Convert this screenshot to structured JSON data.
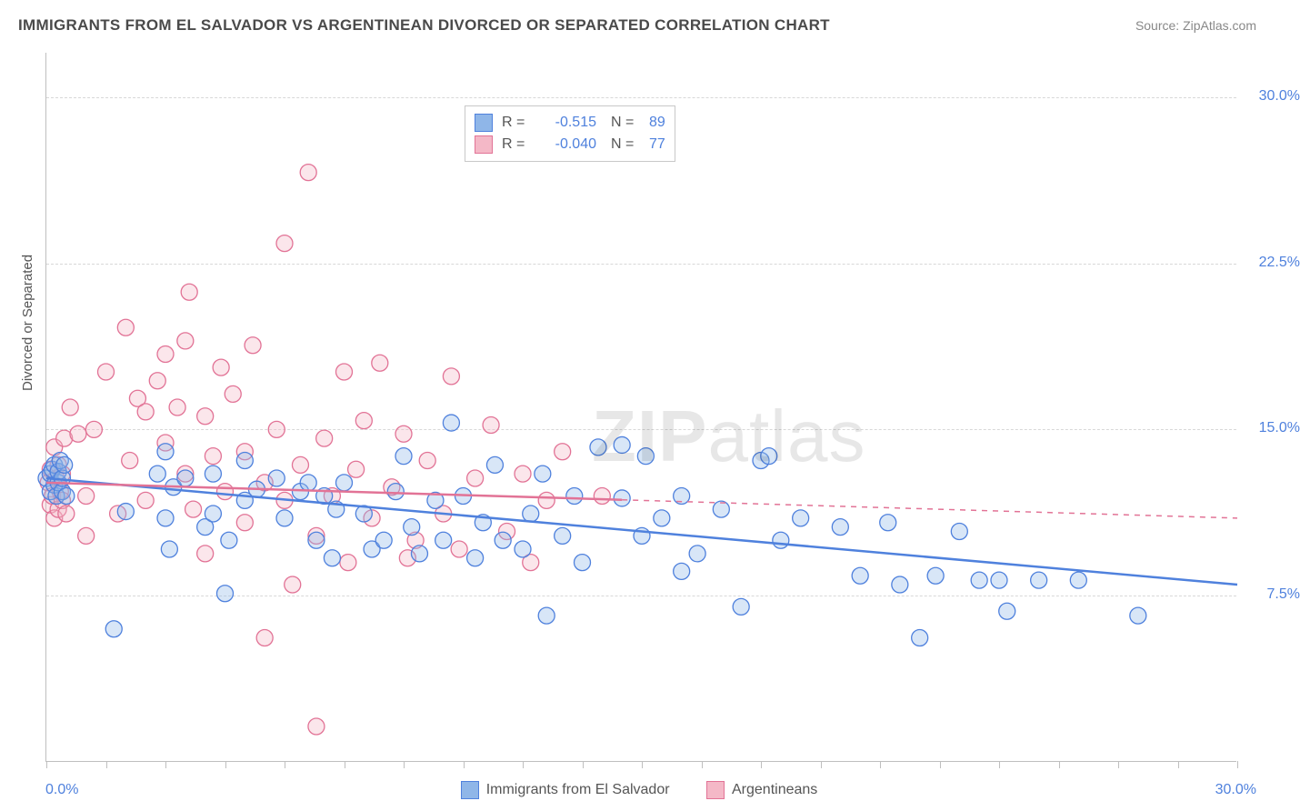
{
  "title": "IMMIGRANTS FROM EL SALVADOR VS ARGENTINEAN DIVORCED OR SEPARATED CORRELATION CHART",
  "source_prefix": "Source: ",
  "source_name": "ZipAtlas.com",
  "watermark_bold": "ZIP",
  "watermark_light": "atlas",
  "y_axis_title": "Divorced or Separated",
  "chart": {
    "type": "scatter",
    "xlim": [
      0.0,
      30.0
    ],
    "ylim": [
      0.0,
      32.0
    ],
    "x_min_label": "0.0%",
    "x_max_label": "30.0%",
    "y_ticks": [
      {
        "v": 7.5,
        "label": "7.5%"
      },
      {
        "v": 15.0,
        "label": "15.0%"
      },
      {
        "v": 22.5,
        "label": "22.5%"
      },
      {
        "v": 30.0,
        "label": "30.0%"
      }
    ],
    "x_minor_tick_step": 1.5,
    "grid_color": "#d8d8d8",
    "background_color": "#ffffff",
    "axis_color": "#bfbfbf",
    "tick_label_color": "#4f81dd",
    "tick_label_fontsize": 16,
    "marker_radius": 9,
    "marker_stroke_width": 1.3,
    "marker_fill_opacity": 0.35,
    "trendline_width": 2.5,
    "series": [
      {
        "name": "Immigrants from El Salvador",
        "fill": "#8fb6e8",
        "stroke": "#4f81dd",
        "R_label": "R =",
        "R": "-0.515",
        "N_label": "N =",
        "N": "89",
        "trend": {
          "x1": 0.0,
          "y1": 12.8,
          "x2": 30.0,
          "y2": 8.0,
          "solid_until_x": 30.0
        },
        "points": [
          [
            0.0,
            12.8
          ],
          [
            0.1,
            13.0
          ],
          [
            0.1,
            12.2
          ],
          [
            0.15,
            13.2
          ],
          [
            0.2,
            12.5
          ],
          [
            0.2,
            13.4
          ],
          [
            0.25,
            12.0
          ],
          [
            0.3,
            12.6
          ],
          [
            0.3,
            13.1
          ],
          [
            0.35,
            13.6
          ],
          [
            0.4,
            12.2
          ],
          [
            0.4,
            12.8
          ],
          [
            0.45,
            13.4
          ],
          [
            0.5,
            12.0
          ],
          [
            1.7,
            6.0
          ],
          [
            2.0,
            11.3
          ],
          [
            2.8,
            13.0
          ],
          [
            3.0,
            14.0
          ],
          [
            3.0,
            11.0
          ],
          [
            3.1,
            9.6
          ],
          [
            3.2,
            12.4
          ],
          [
            3.5,
            12.8
          ],
          [
            4.0,
            10.6
          ],
          [
            4.2,
            13.0
          ],
          [
            4.2,
            11.2
          ],
          [
            4.5,
            7.6
          ],
          [
            4.6,
            10.0
          ],
          [
            5.0,
            13.6
          ],
          [
            5.0,
            11.8
          ],
          [
            5.3,
            12.3
          ],
          [
            5.8,
            12.8
          ],
          [
            6.0,
            11.0
          ],
          [
            6.4,
            12.2
          ],
          [
            6.6,
            12.6
          ],
          [
            6.8,
            10.0
          ],
          [
            7.0,
            12.0
          ],
          [
            7.2,
            9.2
          ],
          [
            7.3,
            11.4
          ],
          [
            7.5,
            12.6
          ],
          [
            8.0,
            11.2
          ],
          [
            8.2,
            9.6
          ],
          [
            8.5,
            10.0
          ],
          [
            8.8,
            12.2
          ],
          [
            9.0,
            13.8
          ],
          [
            9.2,
            10.6
          ],
          [
            9.4,
            9.4
          ],
          [
            9.8,
            11.8
          ],
          [
            10.0,
            10.0
          ],
          [
            10.2,
            15.3
          ],
          [
            10.5,
            12.0
          ],
          [
            10.8,
            9.2
          ],
          [
            11.0,
            10.8
          ],
          [
            11.3,
            13.4
          ],
          [
            11.5,
            10.0
          ],
          [
            12.0,
            9.6
          ],
          [
            12.2,
            11.2
          ],
          [
            12.5,
            13.0
          ],
          [
            12.6,
            6.6
          ],
          [
            13.0,
            10.2
          ],
          [
            13.3,
            12.0
          ],
          [
            13.5,
            9.0
          ],
          [
            13.9,
            14.2
          ],
          [
            14.5,
            11.9
          ],
          [
            14.5,
            14.3
          ],
          [
            15.0,
            10.2
          ],
          [
            15.1,
            13.8
          ],
          [
            15.5,
            11.0
          ],
          [
            16.0,
            8.6
          ],
          [
            16.0,
            12.0
          ],
          [
            16.4,
            9.4
          ],
          [
            17.0,
            11.4
          ],
          [
            17.5,
            7.0
          ],
          [
            18.0,
            13.6
          ],
          [
            18.2,
            13.8
          ],
          [
            18.5,
            10.0
          ],
          [
            19.0,
            11.0
          ],
          [
            20.0,
            10.6
          ],
          [
            20.5,
            8.4
          ],
          [
            21.2,
            10.8
          ],
          [
            21.5,
            8.0
          ],
          [
            22.0,
            5.6
          ],
          [
            22.4,
            8.4
          ],
          [
            23.0,
            10.4
          ],
          [
            23.5,
            8.2
          ],
          [
            24.0,
            8.2
          ],
          [
            24.2,
            6.8
          ],
          [
            25.0,
            8.2
          ],
          [
            26.0,
            8.2
          ],
          [
            27.5,
            6.6
          ]
        ]
      },
      {
        "name": "Argentineans",
        "fill": "#f4b8c7",
        "stroke": "#e27396",
        "R_label": "R =",
        "R": "-0.040",
        "N_label": "N =",
        "N": "77",
        "trend": {
          "x1": 0.0,
          "y1": 12.6,
          "x2": 30.0,
          "y2": 11.0,
          "solid_until_x": 14.5
        },
        "points": [
          [
            0.05,
            12.6
          ],
          [
            0.1,
            11.6
          ],
          [
            0.1,
            13.2
          ],
          [
            0.15,
            12.0
          ],
          [
            0.2,
            14.2
          ],
          [
            0.2,
            11.0
          ],
          [
            0.25,
            12.8
          ],
          [
            0.3,
            13.4
          ],
          [
            0.3,
            11.4
          ],
          [
            0.35,
            12.2
          ],
          [
            0.4,
            13.0
          ],
          [
            0.4,
            11.8
          ],
          [
            0.45,
            14.6
          ],
          [
            0.5,
            11.2
          ],
          [
            0.6,
            16.0
          ],
          [
            0.8,
            14.8
          ],
          [
            1.0,
            12.0
          ],
          [
            1.0,
            10.2
          ],
          [
            1.2,
            15.0
          ],
          [
            1.5,
            17.6
          ],
          [
            1.8,
            11.2
          ],
          [
            2.0,
            19.6
          ],
          [
            2.1,
            13.6
          ],
          [
            2.3,
            16.4
          ],
          [
            2.5,
            15.8
          ],
          [
            2.5,
            11.8
          ],
          [
            2.8,
            17.2
          ],
          [
            3.0,
            14.4
          ],
          [
            3.0,
            18.4
          ],
          [
            3.3,
            16.0
          ],
          [
            3.5,
            13.0
          ],
          [
            3.5,
            19.0
          ],
          [
            3.6,
            21.2
          ],
          [
            3.7,
            11.4
          ],
          [
            4.0,
            15.6
          ],
          [
            4.0,
            9.4
          ],
          [
            4.2,
            13.8
          ],
          [
            4.4,
            17.8
          ],
          [
            4.5,
            12.2
          ],
          [
            4.7,
            16.6
          ],
          [
            5.0,
            14.0
          ],
          [
            5.0,
            10.8
          ],
          [
            5.2,
            18.8
          ],
          [
            5.5,
            12.6
          ],
          [
            5.5,
            5.6
          ],
          [
            5.8,
            15.0
          ],
          [
            6.0,
            23.4
          ],
          [
            6.0,
            11.8
          ],
          [
            6.2,
            8.0
          ],
          [
            6.4,
            13.4
          ],
          [
            6.6,
            26.6
          ],
          [
            6.8,
            10.2
          ],
          [
            6.8,
            1.6
          ],
          [
            7.0,
            14.6
          ],
          [
            7.2,
            12.0
          ],
          [
            7.5,
            17.6
          ],
          [
            7.6,
            9.0
          ],
          [
            7.8,
            13.2
          ],
          [
            8.0,
            15.4
          ],
          [
            8.2,
            11.0
          ],
          [
            8.4,
            18.0
          ],
          [
            8.7,
            12.4
          ],
          [
            9.0,
            14.8
          ],
          [
            9.1,
            9.2
          ],
          [
            9.3,
            10.0
          ],
          [
            9.6,
            13.6
          ],
          [
            10.0,
            11.2
          ],
          [
            10.2,
            17.4
          ],
          [
            10.4,
            9.6
          ],
          [
            10.8,
            12.8
          ],
          [
            11.2,
            15.2
          ],
          [
            11.6,
            10.4
          ],
          [
            12.0,
            13.0
          ],
          [
            12.2,
            9.0
          ],
          [
            12.6,
            11.8
          ],
          [
            13.0,
            14.0
          ],
          [
            14.0,
            12.0
          ]
        ]
      }
    ]
  },
  "legend_bottom": [
    {
      "swatch_fill": "#8fb6e8",
      "swatch_stroke": "#4f81dd",
      "label": "Immigrants from El Salvador"
    },
    {
      "swatch_fill": "#f4b8c7",
      "swatch_stroke": "#e27396",
      "label": "Argentineans"
    }
  ]
}
